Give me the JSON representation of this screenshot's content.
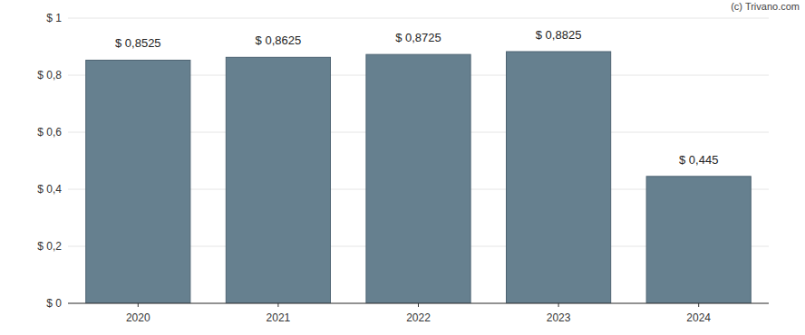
{
  "chart_data": {
    "type": "bar",
    "categories": [
      "2020",
      "2021",
      "2022",
      "2023",
      "2024"
    ],
    "values": [
      0.8525,
      0.8625,
      0.8725,
      0.8825,
      0.445
    ],
    "value_labels": [
      "$ 0,8525",
      "$ 0,8625",
      "$ 0,8725",
      "$ 0,8825",
      "$ 0,445"
    ],
    "data_labels": true,
    "color": "#66808f",
    "ylim": [
      0,
      1
    ],
    "yticks": [
      {
        "value": 0,
        "label": "$ 0"
      },
      {
        "value": 0.2,
        "label": "$ 0,2"
      },
      {
        "value": 0.4,
        "label": "$ 0,4"
      },
      {
        "value": 0.6,
        "label": "$ 0,6"
      },
      {
        "value": 0.8,
        "label": "$ 0,8"
      },
      {
        "value": 1,
        "label": "$ 1"
      }
    ],
    "grid": true,
    "annotations": [
      "(c) Trivano.com"
    ]
  }
}
